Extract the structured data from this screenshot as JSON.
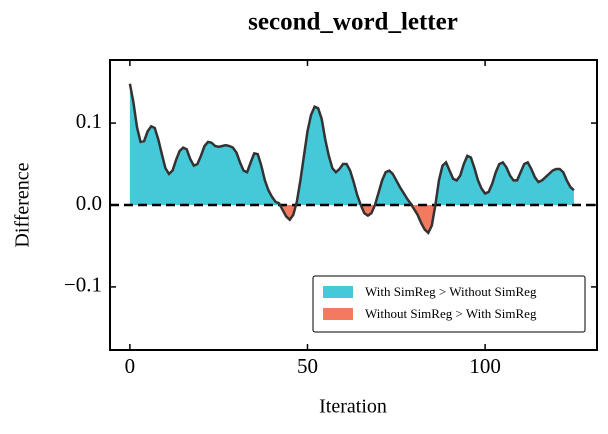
{
  "chart_data": {
    "type": "area-diff",
    "title": "second_word_letter",
    "xlabel": "Iteration",
    "ylabel": "Difference",
    "x": [
      0,
      1,
      2,
      3,
      4,
      5,
      6,
      7,
      8,
      9,
      10,
      11,
      12,
      13,
      14,
      15,
      16,
      17,
      18,
      19,
      20,
      21,
      22,
      23,
      24,
      25,
      26,
      27,
      28,
      29,
      30,
      31,
      32,
      33,
      34,
      35,
      36,
      37,
      38,
      39,
      40,
      41,
      42,
      43,
      44,
      45,
      46,
      47,
      48,
      49,
      50,
      51,
      52,
      53,
      54,
      55,
      56,
      57,
      58,
      59,
      60,
      61,
      62,
      63,
      64,
      65,
      66,
      67,
      68,
      69,
      70,
      71,
      72,
      73,
      74,
      75,
      76,
      77,
      78,
      79,
      80,
      81,
      82,
      83,
      84,
      85,
      86,
      87,
      88,
      89,
      90,
      91,
      92,
      93,
      94,
      95,
      96,
      97,
      98,
      99,
      100,
      101,
      102,
      103,
      104,
      105,
      106,
      107,
      108,
      109,
      110,
      111,
      112,
      113,
      114,
      115,
      116,
      117,
      118,
      119,
      120,
      121,
      122,
      123,
      124,
      125
    ],
    "values": [
      0.148,
      0.125,
      0.095,
      0.077,
      0.078,
      0.09,
      0.096,
      0.094,
      0.08,
      0.062,
      0.045,
      0.038,
      0.042,
      0.055,
      0.066,
      0.07,
      0.068,
      0.056,
      0.048,
      0.05,
      0.06,
      0.072,
      0.077,
      0.076,
      0.072,
      0.071,
      0.072,
      0.073,
      0.072,
      0.07,
      0.064,
      0.052,
      0.042,
      0.04,
      0.052,
      0.063,
      0.062,
      0.048,
      0.03,
      0.018,
      0.01,
      0.004,
      0.002,
      -0.006,
      -0.014,
      -0.018,
      -0.012,
      0.004,
      0.03,
      0.06,
      0.09,
      0.11,
      0.12,
      0.118,
      0.105,
      0.08,
      0.06,
      0.045,
      0.04,
      0.044,
      0.05,
      0.05,
      0.042,
      0.028,
      0.012,
      0.0,
      -0.01,
      -0.013,
      -0.01,
      0.0,
      0.015,
      0.03,
      0.04,
      0.042,
      0.038,
      0.03,
      0.022,
      0.015,
      0.008,
      0.002,
      -0.005,
      -0.012,
      -0.022,
      -0.03,
      -0.034,
      -0.025,
      0.0,
      0.03,
      0.048,
      0.052,
      0.042,
      0.032,
      0.03,
      0.036,
      0.05,
      0.06,
      0.058,
      0.045,
      0.03,
      0.02,
      0.014,
      0.016,
      0.026,
      0.04,
      0.05,
      0.052,
      0.046,
      0.036,
      0.03,
      0.03,
      0.04,
      0.05,
      0.052,
      0.044,
      0.034,
      0.028,
      0.03,
      0.034,
      0.038,
      0.042,
      0.044,
      0.044,
      0.04,
      0.03,
      0.022,
      0.018
    ],
    "line_color": "#333333",
    "hline": 0,
    "series": [
      {
        "name": "With SimReg > Without SimReg",
        "color": "#45c8d8"
      },
      {
        "name": "Without SimReg > With SimReg",
        "color": "#f47a5f"
      }
    ],
    "xlim": [
      -5.6,
      131.5
    ],
    "xticks": [
      0,
      50,
      100
    ],
    "ylim": [
      -0.177,
      0.177
    ],
    "yticks": [
      {
        "value": -0.1,
        "label": "−0.1"
      },
      {
        "value": 0,
        "label": "0.0"
      },
      0.1
    ],
    "legend": "lower right"
  }
}
